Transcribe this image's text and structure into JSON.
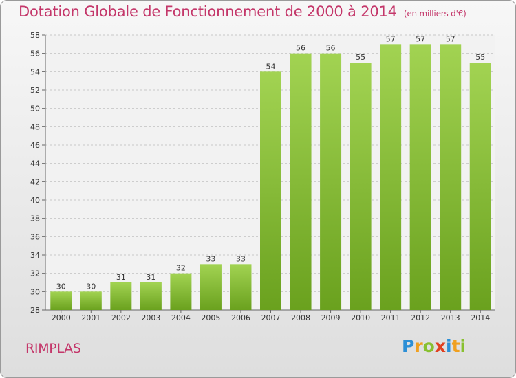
{
  "chart_data": {
    "type": "bar",
    "title": "Dotation Globale de Fonctionnement de 2000 à 2014",
    "subtitle": "(en milliers d'€)",
    "categories": [
      "2000",
      "2001",
      "2002",
      "2003",
      "2004",
      "2005",
      "2006",
      "2007",
      "2008",
      "2009",
      "2010",
      "2011",
      "2012",
      "2013",
      "2014"
    ],
    "values": [
      30,
      30,
      31,
      31,
      32,
      33,
      33,
      54,
      56,
      56,
      55,
      57,
      57,
      57,
      55
    ],
    "ylim": [
      28,
      58
    ],
    "yticks": [
      28,
      30,
      32,
      34,
      36,
      38,
      40,
      42,
      44,
      46,
      48,
      50,
      52,
      54,
      56,
      58
    ],
    "grid": true,
    "bar_color": "#8cc43c"
  },
  "footer": {
    "commune": "RIMPLAS",
    "logo_letters": [
      "P",
      "r",
      "o",
      "x",
      "i",
      "t",
      "i"
    ],
    "logo_colors": [
      "#2c8fd6",
      "#f0a020",
      "#88c030",
      "#e04020",
      "#2c8fd6",
      "#f0a020",
      "#88c030"
    ]
  }
}
